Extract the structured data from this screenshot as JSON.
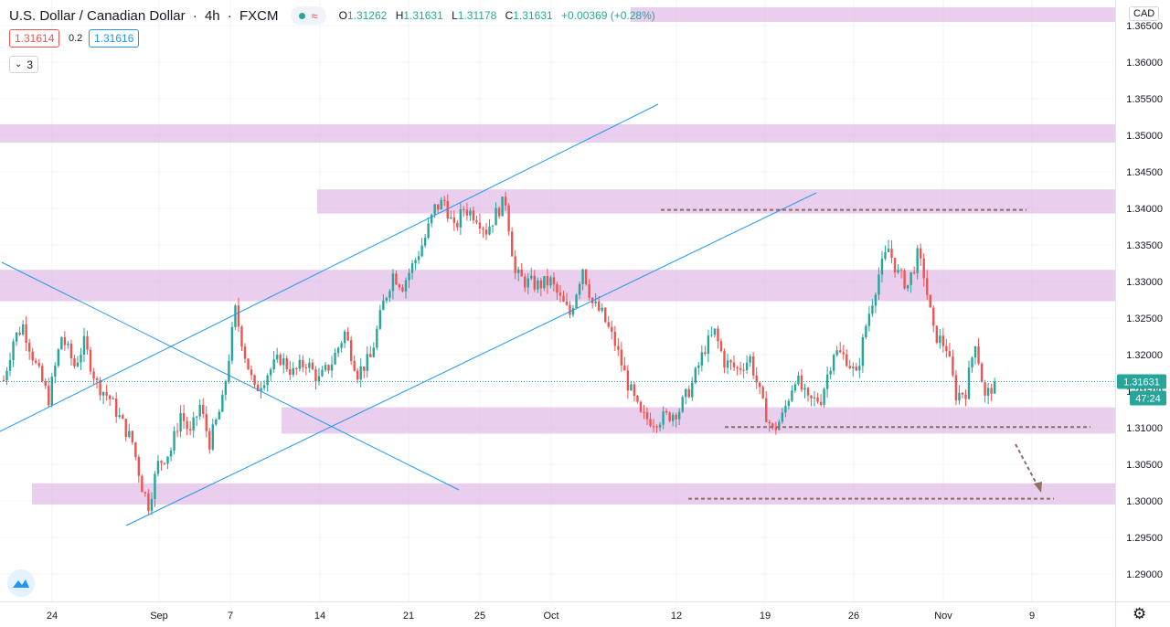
{
  "header": {
    "title": "U.S. Dollar / Canadian Dollar",
    "interval": "4h",
    "source": "FXCM",
    "ohlc": {
      "o_label": "O",
      "o": "1.31262",
      "h_label": "H",
      "h": "1.31631",
      "l_label": "L",
      "l": "1.31178",
      "c_label": "C",
      "c": "1.31631",
      "change": "+0.00369 (+0.28%)"
    }
  },
  "trade": {
    "sell": "1.31614",
    "spread": "0.2",
    "buy": "1.31616"
  },
  "indicators_collapse": {
    "count": "3"
  },
  "currency": "CAD",
  "price_label": {
    "price": "1.31631",
    "countdown": "47:24"
  },
  "colors": {
    "up": "#26a69a",
    "down": "#ef5350",
    "zone": "#e1bee7",
    "trendline": "#2196f3",
    "dashed": "#8d6e63",
    "grid": "#f0f3fa"
  },
  "chart_data": {
    "type": "candlestick",
    "symbol": "USDCAD",
    "interval": "4h",
    "ylim": [
      1.286,
      1.3665
    ],
    "y_ticks": [
      "1.36500",
      "1.36000",
      "1.35500",
      "1.35000",
      "1.34500",
      "1.34000",
      "1.33500",
      "1.33000",
      "1.32500",
      "1.32000",
      "1.31500",
      "1.31000",
      "1.30500",
      "1.30000",
      "1.29500",
      "1.29000"
    ],
    "x_ticks": [
      "24",
      "Sep",
      "7",
      "14",
      "21",
      "25",
      "Oct",
      "12",
      "19",
      "26",
      "Nov",
      "9"
    ],
    "last_price": 1.31631,
    "anchors": [
      [
        0,
        1.3165
      ],
      [
        3,
        1.322
      ],
      [
        6,
        1.324
      ],
      [
        10,
        1.3185
      ],
      [
        14,
        1.314
      ],
      [
        18,
        1.3225
      ],
      [
        22,
        1.3185
      ],
      [
        25,
        1.3215
      ],
      [
        29,
        1.316
      ],
      [
        33,
        1.314
      ],
      [
        37,
        1.3105
      ],
      [
        40,
        1.308
      ],
      [
        43,
        1.302
      ],
      [
        45,
        1.2995
      ],
      [
        48,
        1.305
      ],
      [
        52,
        1.307
      ],
      [
        55,
        1.312
      ],
      [
        58,
        1.309
      ],
      [
        61,
        1.313
      ],
      [
        64,
        1.308
      ],
      [
        68,
        1.3135
      ],
      [
        72,
        1.326
      ],
      [
        75,
        1.32
      ],
      [
        78,
        1.315
      ],
      [
        82,
        1.3175
      ],
      [
        86,
        1.3195
      ],
      [
        90,
        1.3175
      ],
      [
        94,
        1.319
      ],
      [
        98,
        1.3165
      ],
      [
        102,
        1.319
      ],
      [
        106,
        1.323
      ],
      [
        110,
        1.3175
      ],
      [
        114,
        1.3195
      ],
      [
        118,
        1.327
      ],
      [
        121,
        1.331
      ],
      [
        124,
        1.3295
      ],
      [
        128,
        1.333
      ],
      [
        131,
        1.336
      ],
      [
        134,
        1.34
      ],
      [
        137,
        1.341
      ],
      [
        140,
        1.337
      ],
      [
        143,
        1.34
      ],
      [
        147,
        1.339
      ],
      [
        150,
        1.337
      ],
      [
        154,
        1.34
      ],
      [
        156,
        1.341
      ],
      [
        159,
        1.331
      ],
      [
        162,
        1.33
      ],
      [
        166,
        1.3295
      ],
      [
        170,
        1.33
      ],
      [
        173,
        1.3275
      ],
      [
        176,
        1.3255
      ],
      [
        180,
        1.332
      ],
      [
        183,
        1.327
      ],
      [
        186,
        1.3255
      ],
      [
        190,
        1.3215
      ],
      [
        194,
        1.316
      ],
      [
        198,
        1.3115
      ],
      [
        202,
        1.311
      ],
      [
        206,
        1.3115
      ],
      [
        210,
        1.3125
      ],
      [
        214,
        1.316
      ],
      [
        218,
        1.321
      ],
      [
        221,
        1.323
      ],
      [
        224,
        1.319
      ],
      [
        228,
        1.318
      ],
      [
        232,
        1.3195
      ],
      [
        236,
        1.313
      ],
      [
        239,
        1.3095
      ],
      [
        242,
        1.3115
      ],
      [
        246,
        1.317
      ],
      [
        250,
        1.3135
      ],
      [
        254,
        1.314
      ],
      [
        258,
        1.3205
      ],
      [
        262,
        1.3195
      ],
      [
        265,
        1.317
      ],
      [
        268,
        1.324
      ],
      [
        272,
        1.331
      ],
      [
        275,
        1.3345
      ],
      [
        278,
        1.331
      ],
      [
        281,
        1.3295
      ],
      [
        284,
        1.3335
      ],
      [
        286,
        1.331
      ],
      [
        289,
        1.323
      ],
      [
        293,
        1.321
      ],
      [
        296,
        1.3145
      ],
      [
        299,
        1.315
      ],
      [
        302,
        1.322
      ],
      [
        305,
        1.314
      ],
      [
        308,
        1.3163
      ]
    ],
    "zones": [
      {
        "from": 1.3655,
        "to": 1.3675
      },
      {
        "from": 1.349,
        "to": 1.3515
      },
      {
        "from": 1.3393,
        "to": 1.3426
      },
      {
        "from": 1.3273,
        "to": 1.3316
      },
      {
        "from": 1.3092,
        "to": 1.3128
      },
      {
        "from": 1.2995,
        "to": 1.3024
      }
    ],
    "horizontal_levels": [
      1.3398,
      1.3101,
      1.3003
    ],
    "trendlines": 4,
    "projection": "down"
  }
}
